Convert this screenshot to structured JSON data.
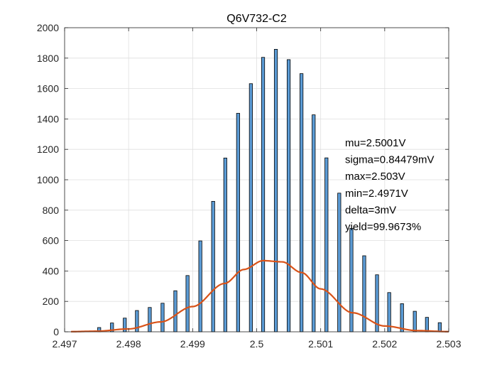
{
  "chart_data": {
    "type": "bar",
    "title": "Q6V732-C2",
    "xlabel": "",
    "ylabel": "",
    "xlim": [
      2.497,
      2.503
    ],
    "ylim": [
      0,
      2000
    ],
    "grid": true,
    "x_ticks": [
      2.497,
      2.498,
      2.499,
      2.5,
      2.501,
      2.502,
      2.503
    ],
    "x_tick_labels": [
      "2.497",
      "2.498",
      "2.499",
      "2.5",
      "2.501",
      "2.502",
      "2.503"
    ],
    "y_ticks": [
      0,
      200,
      400,
      600,
      800,
      1000,
      1200,
      1400,
      1600,
      1800,
      2000
    ],
    "y_tick_labels": [
      "0",
      "200",
      "400",
      "600",
      "800",
      "1000",
      "1200",
      "1400",
      "1600",
      "1800",
      "2000"
    ],
    "histogram": {
      "color": "#5b9bd5",
      "edge_color": "#000000",
      "x": [
        2.49715,
        2.49735,
        2.49754,
        2.49774,
        2.49794,
        2.49813,
        2.49833,
        2.49853,
        2.49873,
        2.49892,
        2.49912,
        2.49932,
        2.49951,
        2.49971,
        2.49991,
        2.5001,
        2.5003,
        2.5005,
        2.5007,
        2.50089,
        2.50109,
        2.50129,
        2.50148,
        2.50168,
        2.50188,
        2.50207,
        2.50227,
        2.50247,
        2.50266,
        2.50286
      ],
      "values": [
        2,
        3,
        28,
        58,
        90,
        140,
        160,
        188,
        270,
        370,
        598,
        858,
        1143,
        1437,
        1632,
        1805,
        1858,
        1790,
        1698,
        1427,
        1144,
        912,
        680,
        500,
        375,
        258,
        185,
        135,
        95,
        60
      ]
    },
    "fit_curve": {
      "color": "#d95319",
      "x": [
        2.4971,
        2.4975,
        2.498,
        2.4985,
        2.499,
        2.4995,
        2.4998,
        2.5001,
        2.5004,
        2.5007,
        2.501,
        2.5015,
        2.502,
        2.5025,
        2.503
      ],
      "values": [
        1,
        4,
        19,
        65,
        166,
        318,
        410,
        468,
        460,
        390,
        282,
        125,
        38,
        8,
        1
      ]
    },
    "annotations": [
      "mu=2.5001V",
      "sigma=0.84479mV",
      "max=2.503V",
      "min=2.4971V",
      "delta=3mV",
      "yield=99.9673%"
    ]
  }
}
